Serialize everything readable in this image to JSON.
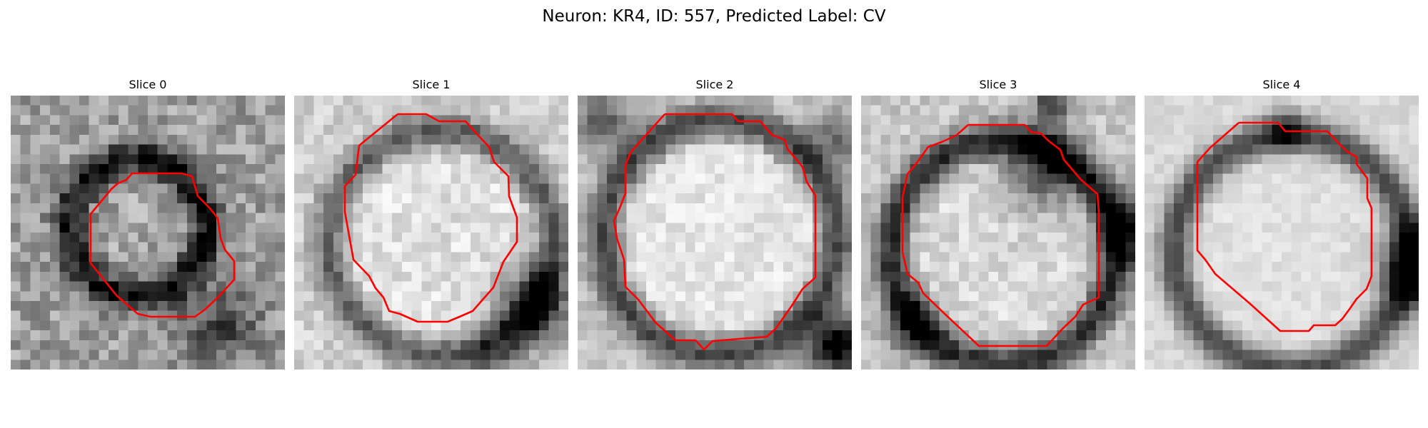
{
  "suptitle": "Neuron: KR4, ID: 557, Predicted Label: CV",
  "panels": [
    {
      "title": "Slice 0"
    },
    {
      "title": "Slice 1"
    },
    {
      "title": "Slice 2"
    },
    {
      "title": "Slice 3"
    },
    {
      "title": "Slice 4"
    }
  ],
  "colors": {
    "contour": "#ff0000"
  },
  "colormap": "gray_r"
}
